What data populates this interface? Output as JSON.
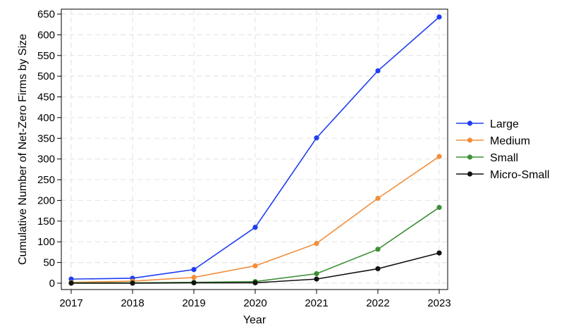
{
  "chart_data": {
    "type": "line",
    "title": "",
    "xlabel": "Year",
    "ylabel": "Cumulative Number of Net-Zero Firms by Size",
    "x": [
      2017,
      2018,
      2019,
      2020,
      2021,
      2022,
      2023
    ],
    "ylim": [
      0,
      650
    ],
    "yticks": [
      0,
      50,
      100,
      150,
      200,
      250,
      300,
      350,
      400,
      450,
      500,
      550,
      600,
      650
    ],
    "grid": true,
    "legend_position": "right",
    "series": [
      {
        "name": "Large",
        "color": "#1f3df2",
        "values": [
          10,
          12,
          33,
          135,
          351,
          513,
          643
        ]
      },
      {
        "name": "Medium",
        "color": "#f28e3b",
        "values": [
          2,
          5,
          14,
          42,
          96,
          205,
          306
        ]
      },
      {
        "name": "Small",
        "color": "#3d8f35",
        "values": [
          1,
          1,
          2,
          4,
          23,
          82,
          183
        ]
      },
      {
        "name": "Micro-Small",
        "color": "#111111",
        "values": [
          0,
          0,
          1,
          1,
          10,
          35,
          73
        ]
      }
    ]
  }
}
